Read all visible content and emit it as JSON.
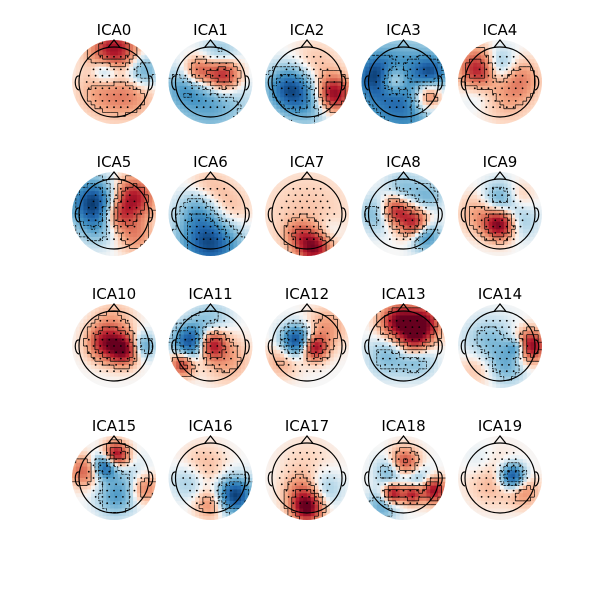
{
  "figure": {
    "columns": 5,
    "components": [
      {
        "title": "ICA0",
        "blobs": [
          [
            0.0,
            -0.85,
            0.45,
            0.9
          ],
          [
            0.0,
            -0.3,
            0.35,
            -0.4
          ],
          [
            -0.35,
            0.3,
            0.5,
            0.25
          ],
          [
            0.45,
            0.3,
            0.5,
            0.35
          ],
          [
            0.8,
            -0.3,
            0.35,
            -0.5
          ],
          [
            -0.3,
            -0.35,
            0.25,
            -0.3
          ]
        ]
      },
      {
        "title": "ICA1",
        "blobs": [
          [
            0.35,
            -0.2,
            0.35,
            0.95
          ],
          [
            -0.35,
            -0.3,
            0.3,
            0.6
          ],
          [
            0.0,
            0.5,
            0.7,
            -0.45
          ],
          [
            -0.8,
            0.2,
            0.4,
            -0.3
          ],
          [
            0.3,
            -0.75,
            0.35,
            -0.3
          ]
        ]
      },
      {
        "title": "ICA2",
        "blobs": [
          [
            0.75,
            0.35,
            0.35,
            0.95
          ],
          [
            -0.5,
            0.2,
            0.45,
            -0.8
          ],
          [
            0.1,
            0.6,
            0.5,
            -0.35
          ],
          [
            0.2,
            -0.4,
            0.5,
            0.2
          ]
        ]
      },
      {
        "title": "ICA3",
        "blobs": [
          [
            -0.3,
            -0.05,
            0.3,
            0.8
          ],
          [
            0.7,
            0.4,
            0.35,
            0.9
          ],
          [
            0.0,
            0.3,
            0.9,
            -0.85
          ],
          [
            -0.75,
            -0.2,
            0.4,
            -0.6
          ],
          [
            0.8,
            -0.3,
            0.3,
            -0.5
          ]
        ]
      },
      {
        "title": "ICA4",
        "blobs": [
          [
            -0.55,
            -0.35,
            0.4,
            0.95
          ],
          [
            -0.1,
            -0.45,
            0.35,
            -0.6
          ],
          [
            0.55,
            -0.1,
            0.4,
            0.35
          ],
          [
            0.2,
            0.5,
            0.5,
            0.2
          ],
          [
            -0.6,
            0.2,
            0.35,
            -0.2
          ]
        ]
      },
      {
        "title": "ICA5",
        "blobs": [
          [
            0.55,
            -0.45,
            0.4,
            0.8
          ],
          [
            0.1,
            0.05,
            0.3,
            0.5
          ],
          [
            -0.6,
            -0.35,
            0.45,
            -0.9
          ],
          [
            -0.5,
            0.35,
            0.4,
            -0.3
          ],
          [
            0.6,
            0.6,
            0.35,
            0.35
          ]
        ]
      },
      {
        "title": "ICA6",
        "blobs": [
          [
            0.0,
            0.75,
            0.6,
            -0.95
          ],
          [
            -0.3,
            -0.2,
            0.4,
            -0.35
          ],
          [
            0.4,
            0.0,
            0.5,
            0.35
          ],
          [
            -0.1,
            -0.7,
            0.4,
            0.2
          ]
        ]
      },
      {
        "title": "ICA7",
        "blobs": [
          [
            0.2,
            0.9,
            0.35,
            0.95
          ],
          [
            0.5,
            0.6,
            0.3,
            -0.3
          ],
          [
            0.0,
            0.0,
            0.9,
            0.15
          ],
          [
            -0.3,
            0.55,
            0.25,
            0.25
          ]
        ]
      },
      {
        "title": "ICA8",
        "blobs": [
          [
            -0.25,
            -0.1,
            0.3,
            0.8
          ],
          [
            0.35,
            0.3,
            0.3,
            0.85
          ],
          [
            0.6,
            0.6,
            0.3,
            -0.7
          ],
          [
            -0.7,
            0.0,
            0.35,
            -0.4
          ],
          [
            0.0,
            -0.7,
            0.35,
            -0.3
          ],
          [
            0.7,
            -0.5,
            0.3,
            -0.3
          ]
        ]
      },
      {
        "title": "ICA9",
        "blobs": [
          [
            0.0,
            0.3,
            0.3,
            0.95
          ],
          [
            0.0,
            -0.4,
            0.35,
            -0.45
          ],
          [
            -0.55,
            0.0,
            0.4,
            0.3
          ],
          [
            0.55,
            0.2,
            0.35,
            -0.25
          ],
          [
            0.5,
            -0.5,
            0.3,
            0.2
          ]
        ]
      },
      {
        "title": "ICA10",
        "blobs": [
          [
            -0.25,
            -0.1,
            0.35,
            0.75
          ],
          [
            0.3,
            0.1,
            0.3,
            0.9
          ],
          [
            0.8,
            0.0,
            0.25,
            -0.5
          ],
          [
            0.0,
            -0.75,
            0.4,
            0.2
          ]
        ]
      },
      {
        "title": "ICA11",
        "blobs": [
          [
            -0.55,
            -0.1,
            0.35,
            -0.95
          ],
          [
            0.0,
            -0.05,
            0.3,
            0.9
          ],
          [
            -0.8,
            0.5,
            0.25,
            0.7
          ],
          [
            0.0,
            -0.75,
            0.4,
            -0.25
          ],
          [
            0.5,
            0.4,
            0.45,
            0.25
          ]
        ]
      },
      {
        "title": "ICA12",
        "blobs": [
          [
            -0.3,
            -0.15,
            0.3,
            -0.95
          ],
          [
            0.2,
            0.05,
            0.25,
            0.85
          ],
          [
            0.55,
            -0.5,
            0.4,
            0.3
          ],
          [
            -0.7,
            0.4,
            0.35,
            0.25
          ]
        ]
      },
      {
        "title": "ICA13",
        "blobs": [
          [
            -0.15,
            -0.7,
            0.35,
            0.9
          ],
          [
            0.55,
            -0.65,
            0.35,
            0.9
          ],
          [
            0.3,
            -0.15,
            0.3,
            0.6
          ],
          [
            -0.45,
            0.3,
            0.4,
            -0.3
          ],
          [
            0.4,
            0.4,
            0.35,
            -0.3
          ]
        ]
      },
      {
        "title": "ICA14",
        "blobs": [
          [
            0.85,
            0.0,
            0.3,
            0.95
          ],
          [
            0.5,
            0.05,
            0.2,
            -0.6
          ],
          [
            -0.3,
            0.0,
            0.5,
            -0.35
          ],
          [
            0.2,
            0.6,
            0.35,
            -0.3
          ],
          [
            -0.6,
            0.55,
            0.4,
            0.25
          ]
        ]
      },
      {
        "title": "ICA15",
        "blobs": [
          [
            0.05,
            -0.65,
            0.25,
            0.95
          ],
          [
            -0.25,
            -0.35,
            0.25,
            -0.85
          ],
          [
            -0.85,
            -0.2,
            0.3,
            0.5
          ],
          [
            0.4,
            0.2,
            0.45,
            -0.3
          ],
          [
            0.85,
            0.3,
            0.3,
            0.5
          ],
          [
            0.0,
            0.6,
            0.35,
            -0.3
          ]
        ]
      },
      {
        "title": "ICA16",
        "blobs": [
          [
            0.7,
            0.5,
            0.35,
            -0.95
          ],
          [
            0.0,
            0.75,
            0.3,
            0.35
          ],
          [
            -0.2,
            -0.3,
            0.45,
            0.2
          ],
          [
            -0.6,
            0.1,
            0.35,
            -0.25
          ]
        ]
      },
      {
        "title": "ICA17",
        "blobs": [
          [
            0.0,
            0.85,
            0.3,
            0.95
          ],
          [
            -0.15,
            0.4,
            0.35,
            0.35
          ],
          [
            0.5,
            0.3,
            0.35,
            -0.25
          ],
          [
            0.0,
            -0.4,
            0.6,
            0.1
          ]
        ]
      },
      {
        "title": "ICA18",
        "blobs": [
          [
            -0.3,
            0.45,
            0.2,
            0.9
          ],
          [
            0.25,
            0.45,
            0.2,
            0.85
          ],
          [
            0.0,
            -0.4,
            0.3,
            0.75
          ],
          [
            0.85,
            0.35,
            0.25,
            0.9
          ],
          [
            -0.3,
            -0.2,
            0.3,
            -0.5
          ],
          [
            0.4,
            0.1,
            0.3,
            -0.4
          ],
          [
            -0.6,
            0.8,
            0.3,
            -0.4
          ]
        ]
      },
      {
        "title": "ICA19",
        "blobs": [
          [
            0.35,
            -0.05,
            0.25,
            -0.95
          ],
          [
            -0.2,
            0.0,
            0.5,
            0.25
          ],
          [
            0.7,
            0.4,
            0.3,
            0.3
          ],
          [
            -0.5,
            -0.4,
            0.35,
            -0.15
          ]
        ]
      }
    ]
  }
}
